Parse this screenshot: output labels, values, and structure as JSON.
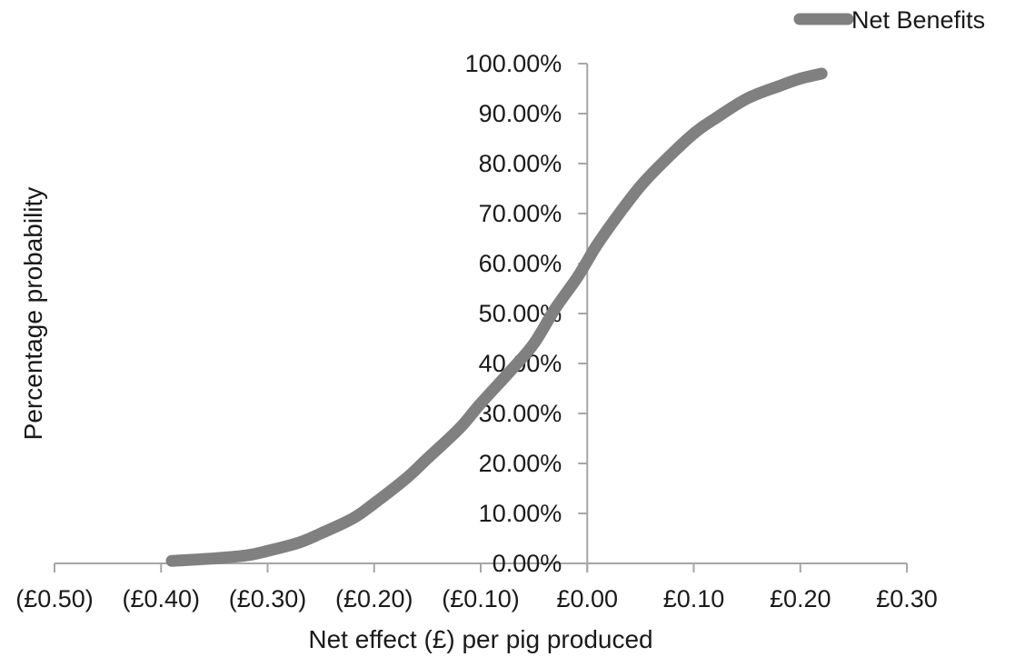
{
  "chart_data": {
    "type": "line",
    "title": "",
    "xlabel": "Net effect (£) per pig produced",
    "ylabel": "Percentage probability",
    "xlim": [
      -0.5,
      0.3
    ],
    "ylim": [
      0,
      1
    ],
    "x_ticks": [
      -0.5,
      -0.4,
      -0.3,
      -0.2,
      -0.1,
      0.0,
      0.1,
      0.2,
      0.3
    ],
    "x_tick_labels": [
      "(£0.50)",
      "(£0.40)",
      "(£0.30)",
      "(£0.20)",
      "(£0.10)",
      "£0.00",
      "£0.10",
      "£0.20",
      "£0.30"
    ],
    "y_ticks": [
      0,
      0.1,
      0.2,
      0.3,
      0.4,
      0.5,
      0.6,
      0.7,
      0.8,
      0.9,
      1.0
    ],
    "y_tick_labels": [
      "0.00%",
      "10.00%",
      "20.00%",
      "30.00%",
      "40.00%",
      "50.00%",
      "60.00%",
      "70.00%",
      "80.00%",
      "90.00%",
      "100.00%"
    ],
    "grid": false,
    "legend_position": "top-right",
    "series": [
      {
        "name": "Net Benefits",
        "color": "#808080",
        "x": [
          -0.39,
          -0.35,
          -0.32,
          -0.3,
          -0.27,
          -0.25,
          -0.22,
          -0.2,
          -0.17,
          -0.15,
          -0.12,
          -0.1,
          -0.07,
          -0.05,
          -0.03,
          -0.01,
          0.0,
          0.01,
          0.03,
          0.05,
          0.07,
          0.1,
          0.12,
          0.15,
          0.18,
          0.2,
          0.22
        ],
        "y": [
          0.005,
          0.01,
          0.016,
          0.025,
          0.042,
          0.06,
          0.09,
          0.12,
          0.17,
          0.21,
          0.27,
          0.32,
          0.39,
          0.44,
          0.51,
          0.57,
          0.605,
          0.64,
          0.7,
          0.755,
          0.8,
          0.86,
          0.89,
          0.93,
          0.955,
          0.97,
          0.98
        ]
      }
    ]
  }
}
